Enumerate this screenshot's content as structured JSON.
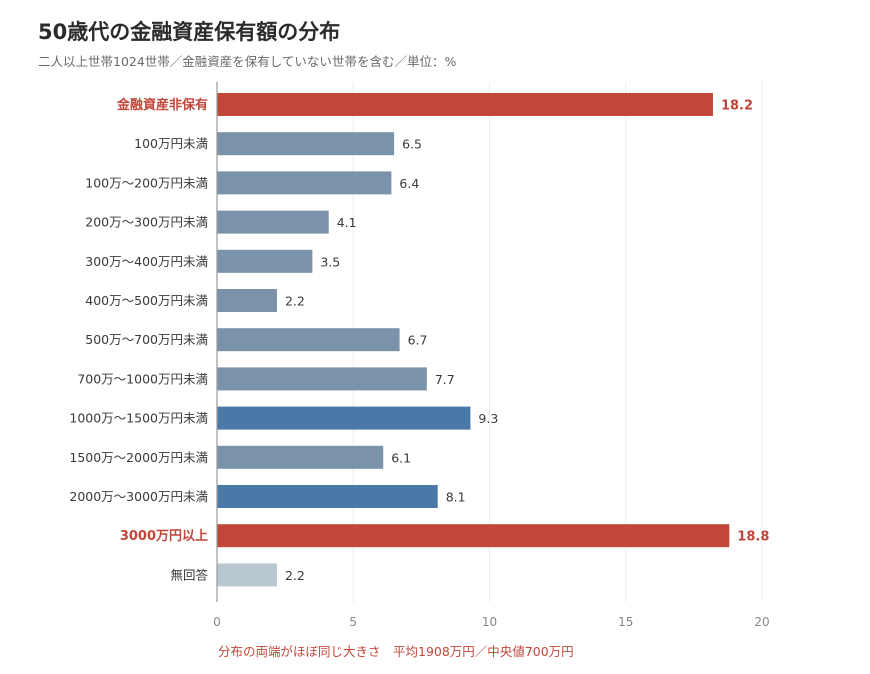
{
  "header": {
    "title": "50歳代の金融資産保有額の分布",
    "subtitle": "二人以上世帯1024世帯／金融資産を保有していない世帯を含む／単位：%"
  },
  "footer": {
    "note": "分布の両端がほぼ同じ大きさ　平均1908万円／中央値700万円"
  },
  "colors": {
    "highlight": "#c0473a",
    "default": "#7b93aa",
    "emphasis": "#4a79a8",
    "na": "#b9c7d1",
    "grid": "#ececec",
    "axis": "#9a9a9a"
  },
  "chart_data": {
    "type": "bar",
    "orientation": "horizontal",
    "title": "50歳代の金融資産保有額の分布",
    "xlabel": "",
    "ylabel": "",
    "xlim": [
      0,
      20
    ],
    "xticks": [
      0,
      5,
      10,
      15,
      20
    ],
    "grid": true,
    "categories": [
      "金融資産非保有",
      "100万円未満",
      "100万～200万円未満",
      "200万～300万円未満",
      "300万～400万円未満",
      "400万～500万円未満",
      "500万～700万円未満",
      "700万～1000万円未満",
      "1000万～1500万円未満",
      "1500万～2000万円未満",
      "2000万～3000万円未満",
      "3000万円以上",
      "無回答"
    ],
    "values": [
      18.2,
      6.5,
      6.4,
      4.1,
      3.5,
      2.2,
      6.7,
      7.7,
      9.3,
      6.1,
      8.1,
      18.8,
      2.2
    ],
    "value_labels": [
      "18.2",
      "6.5",
      "6.4",
      "4.1",
      "3.5",
      "2.2",
      "6.7",
      "7.7",
      "9.3",
      "6.1",
      "8.1",
      "18.8",
      "2.2"
    ],
    "bar_styles": [
      "highlight",
      "default",
      "default",
      "default",
      "default",
      "default",
      "default",
      "default",
      "emphasis",
      "default",
      "emphasis",
      "highlight",
      "na"
    ]
  }
}
